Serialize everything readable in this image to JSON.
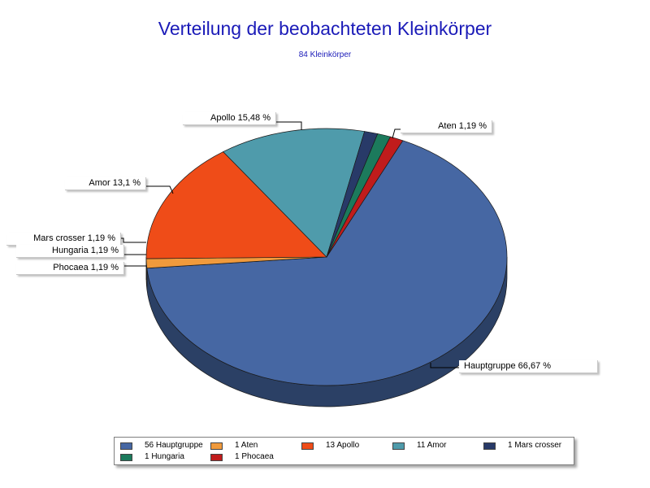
{
  "chart_data": {
    "type": "pie",
    "title": "Verteilung der beobachteten Kleinkörper",
    "subtitle": "84 Kleinkörper",
    "categories": [
      "Hauptgruppe",
      "Aten",
      "Apollo",
      "Amor",
      "Mars crosser",
      "Hungaria",
      "Phocaea"
    ],
    "values": [
      56,
      1,
      13,
      11,
      1,
      1,
      1
    ],
    "colors": [
      "#4667a3",
      "#f09a3c",
      "#ef4c18",
      "#4f9bab",
      "#283a68",
      "#1c7a5c",
      "#c01c1c"
    ],
    "slice_labels": [
      "Hauptgruppe 66,67 %",
      "Aten 1,19 %",
      "Apollo 15,48 %",
      "Amor 13,1 %",
      "Mars crosser 1,19 %",
      "Hungaria 1,19 %",
      "Phocaea 1,19 %"
    ],
    "legend_entries": [
      "56 Hauptgruppe",
      "1 Aten",
      "13 Apollo",
      "11 Amor",
      "1 Mars crosser",
      "1 Hungaria",
      "1 Phocaea"
    ],
    "legend_position": "bottom",
    "style": "3d"
  }
}
